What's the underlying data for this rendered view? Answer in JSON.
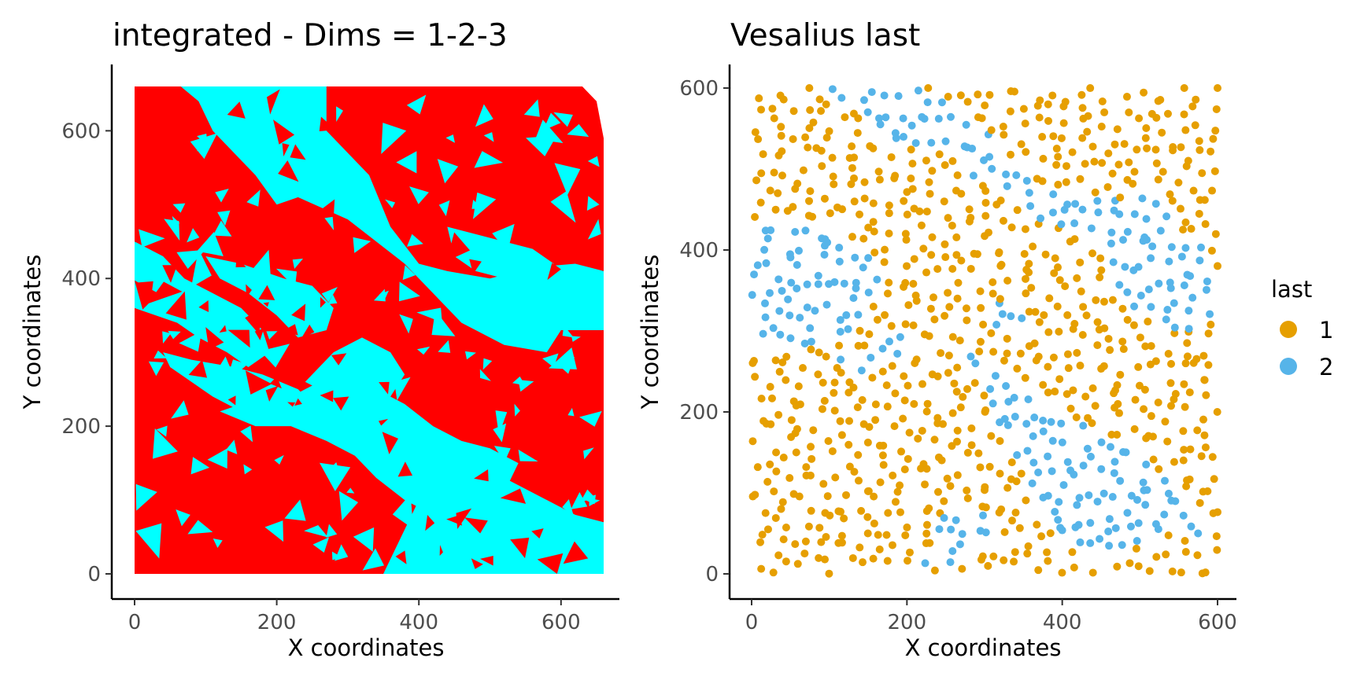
{
  "chart_data": [
    {
      "type": "heatmap",
      "title": "integrated - Dims = 1-2-3",
      "xlabel": "X coordinates",
      "ylabel": "Y coordinates",
      "xlim": [
        -30,
        690
      ],
      "ylim": [
        -30,
        690
      ],
      "xticks": [
        0,
        200,
        400,
        600
      ],
      "yticks": [
        0,
        200,
        400,
        600
      ],
      "xtick_labels": [
        "0",
        "200",
        "400",
        "600"
      ],
      "ytick_labels": [
        "0",
        "200",
        "400",
        "600"
      ],
      "grid": false,
      "legend": "none",
      "colors": {
        "background_territory": "#ff0000",
        "territory_2": "#00ffff"
      },
      "extent": [
        0,
        660,
        0,
        660
      ],
      "regions": [
        {
          "name": "territory_2",
          "polygon": [
            [
              65,
              660
            ],
            [
              270,
              660
            ],
            [
              270,
              600
            ],
            [
              330,
              540
            ],
            [
              360,
              470
            ],
            [
              400,
              420
            ],
            [
              440,
              410
            ],
            [
              500,
              400
            ],
            [
              560,
              415
            ],
            [
              620,
              420
            ],
            [
              660,
              410
            ],
            [
              660,
              330
            ],
            [
              600,
              330
            ],
            [
              580,
              300
            ],
            [
              520,
              310
            ],
            [
              460,
              340
            ],
            [
              420,
              380
            ],
            [
              380,
              420
            ],
            [
              300,
              480
            ],
            [
              230,
              510
            ],
            [
              200,
              500
            ],
            [
              170,
              540
            ],
            [
              110,
              600
            ],
            [
              90,
              640
            ]
          ]
        },
        {
          "name": "territory_2",
          "polygon": [
            [
              0,
              450
            ],
            [
              40,
              430
            ],
            [
              70,
              400
            ],
            [
              110,
              380
            ],
            [
              150,
              360
            ],
            [
              180,
              330
            ],
            [
              190,
              300
            ],
            [
              160,
              280
            ],
            [
              130,
              300
            ],
            [
              90,
              320
            ],
            [
              60,
              340
            ],
            [
              30,
              350
            ],
            [
              0,
              360
            ]
          ]
        },
        {
          "name": "territory_2",
          "polygon": [
            [
              100,
              430
            ],
            [
              150,
              420
            ],
            [
              210,
              400
            ],
            [
              250,
              390
            ],
            [
              280,
              360
            ],
            [
              270,
              330
            ],
            [
              230,
              320
            ],
            [
              200,
              350
            ],
            [
              160,
              380
            ],
            [
              120,
              400
            ]
          ]
        },
        {
          "name": "territory_2",
          "polygon": [
            [
              40,
              300
            ],
            [
              80,
              290
            ],
            [
              140,
              280
            ],
            [
              180,
              270
            ],
            [
              230,
              250
            ],
            [
              260,
              220
            ],
            [
              240,
              200
            ],
            [
              200,
              210
            ],
            [
              150,
              220
            ],
            [
              110,
              240
            ],
            [
              80,
              260
            ],
            [
              50,
              280
            ]
          ]
        },
        {
          "name": "territory_2",
          "polygon": [
            [
              120,
              220
            ],
            [
              170,
              200
            ],
            [
              220,
              200
            ],
            [
              270,
              180
            ],
            [
              310,
              160
            ],
            [
              340,
              130
            ],
            [
              380,
              100
            ],
            [
              420,
              80
            ],
            [
              460,
              70
            ],
            [
              500,
              80
            ],
            [
              520,
              110
            ],
            [
              540,
              150
            ],
            [
              500,
              170
            ],
            [
              460,
              180
            ],
            [
              420,
              200
            ],
            [
              380,
              230
            ],
            [
              340,
              250
            ],
            [
              300,
              270
            ],
            [
              260,
              260
            ],
            [
              220,
              240
            ],
            [
              180,
              240
            ]
          ]
        },
        {
          "name": "territory_2",
          "polygon": [
            [
              350,
              0
            ],
            [
              660,
              0
            ],
            [
              660,
              70
            ],
            [
              620,
              80
            ],
            [
              580,
              100
            ],
            [
              540,
              120
            ],
            [
              500,
              140
            ],
            [
              470,
              150
            ],
            [
              430,
              130
            ],
            [
              400,
              100
            ],
            [
              380,
              60
            ]
          ]
        },
        {
          "name": "territory_2",
          "polygon": [
            [
              240,
              260
            ],
            [
              280,
              300
            ],
            [
              320,
              320
            ],
            [
              360,
              300
            ],
            [
              380,
              270
            ],
            [
              360,
              240
            ],
            [
              320,
              230
            ],
            [
              280,
              240
            ]
          ]
        },
        {
          "name": "territory_2",
          "polygon": [
            [
              440,
              470
            ],
            [
              480,
              460
            ],
            [
              520,
              450
            ],
            [
              560,
              440
            ],
            [
              590,
              420
            ],
            [
              560,
              400
            ],
            [
              520,
              400
            ],
            [
              480,
              410
            ],
            [
              450,
              430
            ]
          ]
        }
      ]
    },
    {
      "type": "scatter",
      "title": "Vesalius last",
      "xlabel": "X coordinates",
      "ylabel": "Y coordinates",
      "xlim": [
        -30,
        630
      ],
      "ylim": [
        -30,
        630
      ],
      "xticks": [
        0,
        200,
        400,
        600
      ],
      "yticks": [
        0,
        200,
        400,
        600
      ],
      "xtick_labels": [
        "0",
        "200",
        "400",
        "600"
      ],
      "ytick_labels": [
        "0",
        "200",
        "400",
        "600"
      ],
      "grid": false,
      "legend_position": "right",
      "legend_title": "last",
      "series": [
        {
          "name": "1",
          "color": "#e69f00"
        },
        {
          "name": "2",
          "color": "#56b4e9"
        }
      ],
      "point_count_estimate": 1000,
      "domain_x": [
        0,
        600
      ],
      "domain_y": [
        0,
        600
      ],
      "cluster_2_regions": [
        [
          [
            90,
            600
          ],
          [
            230,
            600
          ],
          [
            290,
            560
          ],
          [
            330,
            520
          ],
          [
            370,
            480
          ],
          [
            420,
            470
          ],
          [
            480,
            460
          ],
          [
            520,
            480
          ],
          [
            540,
            440
          ],
          [
            480,
            420
          ],
          [
            420,
            420
          ],
          [
            360,
            440
          ],
          [
            300,
            480
          ],
          [
            250,
            520
          ],
          [
            170,
            540
          ],
          [
            120,
            580
          ]
        ],
        [
          [
            0,
            420
          ],
          [
            60,
            440
          ],
          [
            100,
            430
          ],
          [
            150,
            400
          ],
          [
            170,
            360
          ],
          [
            150,
            320
          ],
          [
            110,
            290
          ],
          [
            60,
            280
          ],
          [
            0,
            290
          ]
        ],
        [
          [
            100,
            260
          ],
          [
            160,
            280
          ],
          [
            200,
            300
          ],
          [
            240,
            290
          ],
          [
            280,
            260
          ],
          [
            300,
            220
          ],
          [
            320,
            180
          ],
          [
            340,
            140
          ],
          [
            360,
            110
          ],
          [
            380,
            80
          ],
          [
            400,
            50
          ],
          [
            430,
            20
          ],
          [
            470,
            20
          ],
          [
            500,
            40
          ],
          [
            540,
            60
          ],
          [
            580,
            40
          ],
          [
            580,
            80
          ],
          [
            540,
            120
          ],
          [
            500,
            140
          ],
          [
            460,
            170
          ],
          [
            420,
            190
          ],
          [
            380,
            210
          ],
          [
            340,
            240
          ],
          [
            300,
            260
          ],
          [
            260,
            280
          ],
          [
            220,
            270
          ],
          [
            180,
            260
          ],
          [
            140,
            250
          ]
        ],
        [
          [
            440,
            430
          ],
          [
            500,
            440
          ],
          [
            560,
            420
          ],
          [
            600,
            390
          ],
          [
            600,
            320
          ],
          [
            560,
            300
          ],
          [
            520,
            310
          ],
          [
            480,
            330
          ],
          [
            460,
            370
          ],
          [
            450,
            400
          ]
        ],
        [
          [
            300,
            330
          ],
          [
            340,
            340
          ],
          [
            360,
            310
          ],
          [
            340,
            290
          ],
          [
            310,
            300
          ]
        ],
        [
          [
            220,
            10
          ],
          [
            280,
            10
          ],
          [
            320,
            40
          ],
          [
            300,
            80
          ],
          [
            260,
            90
          ],
          [
            240,
            60
          ]
        ]
      ]
    }
  ]
}
